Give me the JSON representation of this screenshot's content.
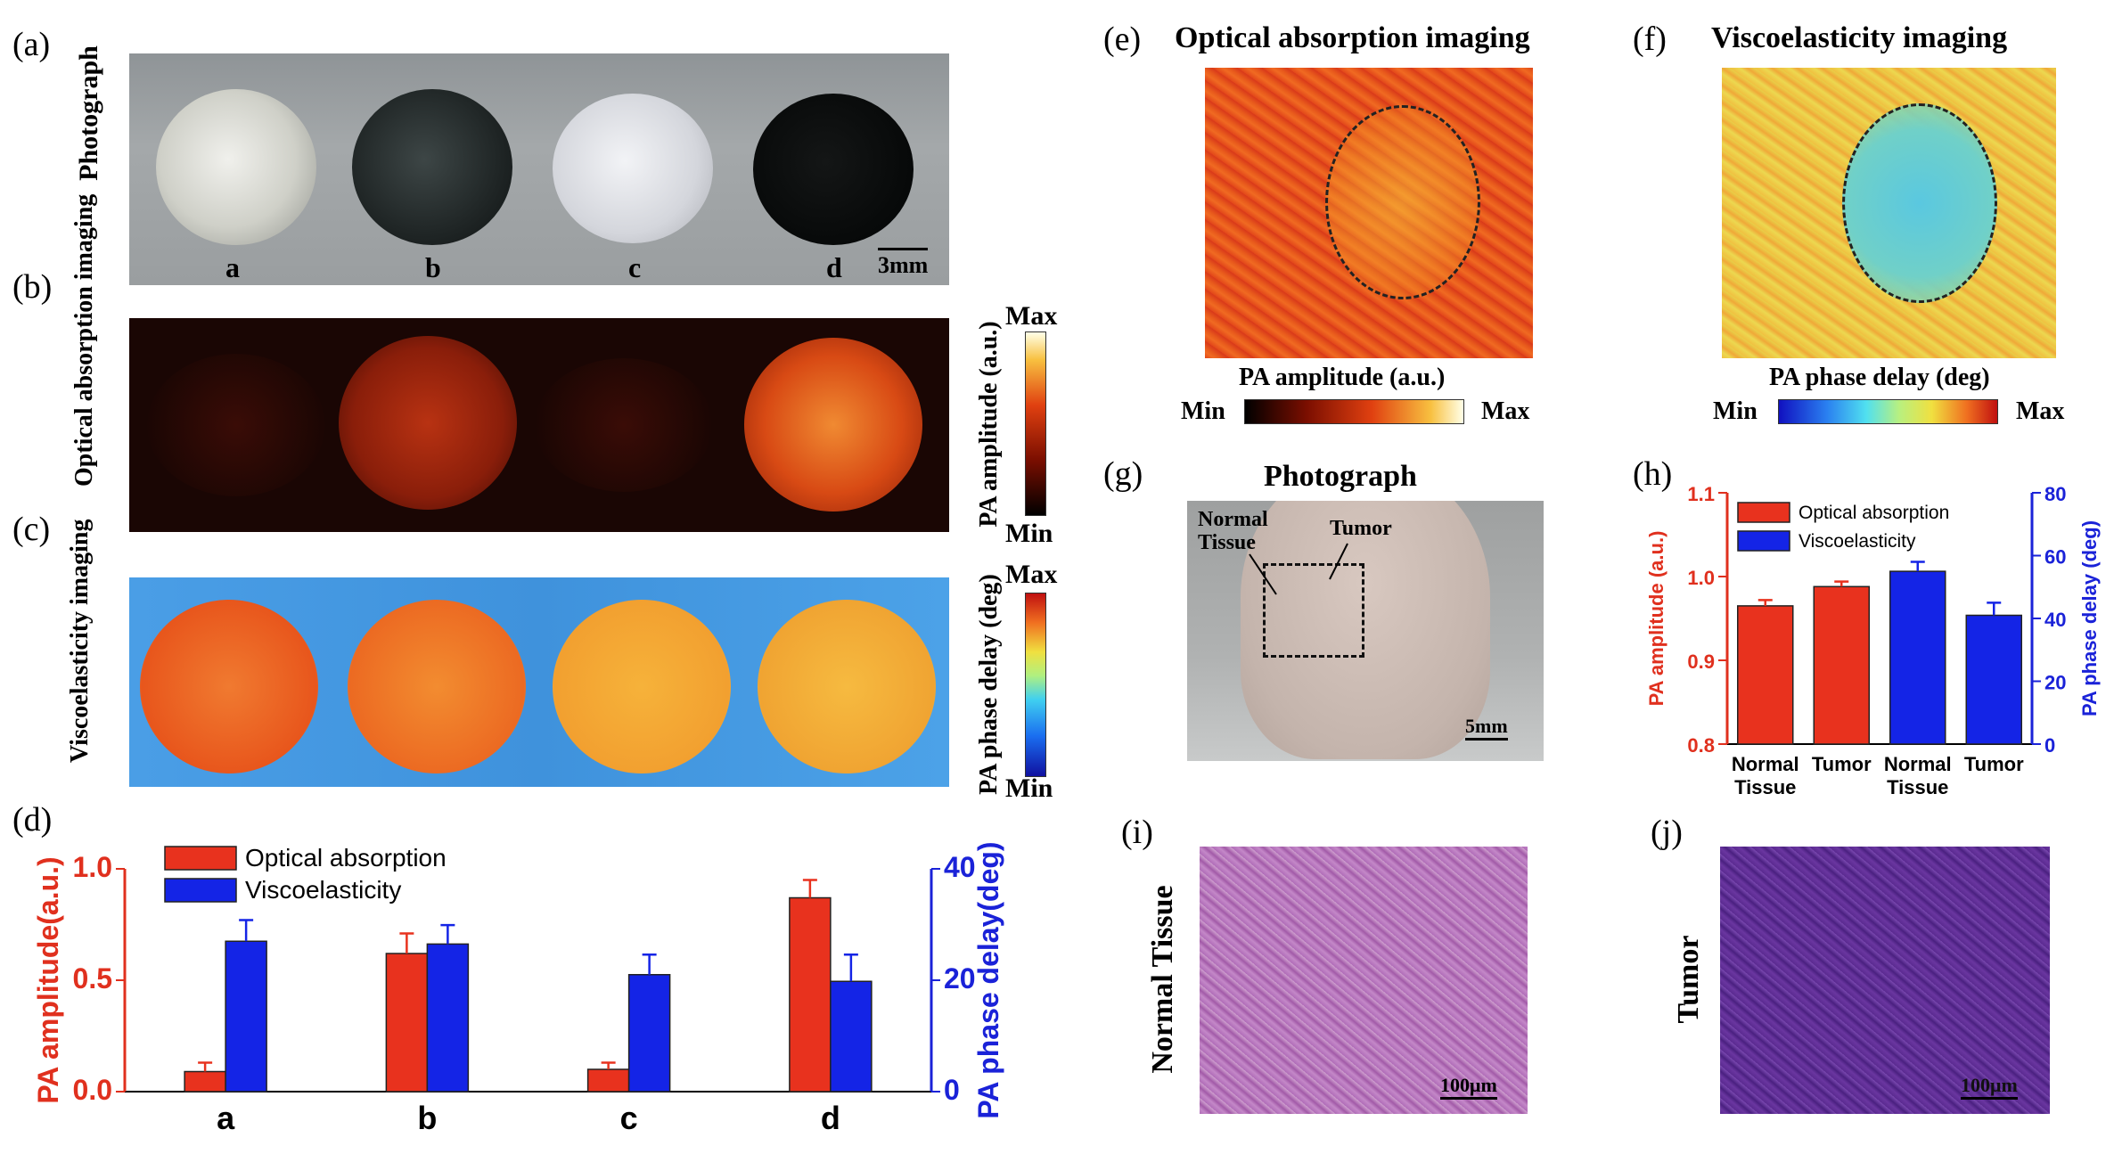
{
  "panels": {
    "a": {
      "label": "(a)",
      "row_title": "Photograph",
      "sample_labels": [
        "a",
        "b",
        "c",
        "d"
      ],
      "scale": "3mm"
    },
    "b": {
      "label": "(b)",
      "row_title": "Optical absorption imaging",
      "colorbar_title": "PA amplitude (a.u.)",
      "max": "Max",
      "min": "Min"
    },
    "c": {
      "label": "(c)",
      "row_title": "Viscoelasticity imaging",
      "colorbar_title": "PA phase delay (deg)",
      "max": "Max",
      "min": "Min"
    },
    "d": {
      "label": "(d)"
    },
    "e": {
      "label": "(e)",
      "title": "Optical absorption imaging",
      "colorbar_title": "PA amplitude (a.u.)",
      "min": "Min",
      "max": "Max"
    },
    "f": {
      "label": "(f)",
      "title": "Viscoelasticity imaging",
      "colorbar_title": "PA phase delay (deg)",
      "min": "Min",
      "max": "Max"
    },
    "g": {
      "label": "(g)",
      "title": "Photograph",
      "normal_label": "Normal Tissue",
      "tumor_label": "Tumor",
      "scale": "5mm"
    },
    "h": {
      "label": "(h)"
    },
    "i": {
      "label": "(i)",
      "side_label": "Normal Tissue",
      "scale": "100μm"
    },
    "j": {
      "label": "(j)",
      "side_label": "Tumor",
      "scale": "100μm"
    }
  },
  "colors": {
    "optical": "#e8321e",
    "visco": "#1424e6",
    "red_axis": "#e0301e",
    "blue_axis": "#1a22d8"
  },
  "chart_data": [
    {
      "id": "d",
      "type": "bar",
      "categories": [
        "a",
        "b",
        "c",
        "d"
      ],
      "legend": [
        "Optical absorption",
        "Viscoelasticity"
      ],
      "ylabel_left": "PA amplitude(a.u.)",
      "ylabel_right": "PA phase delay(deg)",
      "ylim_left": [
        0,
        1.0
      ],
      "ylim_right": [
        0,
        40
      ],
      "yticks_left": [
        "0.0",
        "0.5",
        "1.0"
      ],
      "yticks_right": [
        "0",
        "20",
        "40"
      ],
      "series": [
        {
          "name": "Optical absorption",
          "axis": "left",
          "values": [
            0.09,
            0.62,
            0.1,
            0.87
          ],
          "errors": [
            0.04,
            0.09,
            0.03,
            0.08
          ]
        },
        {
          "name": "Viscoelasticity",
          "axis": "right",
          "values": [
            27,
            26.5,
            21,
            19.8
          ],
          "errors": [
            3.8,
            3.4,
            3.6,
            4.8
          ]
        }
      ]
    },
    {
      "id": "h",
      "type": "bar",
      "categories": [
        "Normal Tissue",
        "Tumor",
        "Normal Tissue",
        "Tumor"
      ],
      "legend": [
        "Optical absorption",
        "Viscoelasticity"
      ],
      "ylabel_left": "PA amplitude (a.u.)",
      "ylabel_right": "PA phase delay (deg)",
      "ylim_left": [
        0.8,
        1.1
      ],
      "ylim_right": [
        0,
        80
      ],
      "yticks_left": [
        "0.8",
        "0.9",
        "1.0",
        "1.1"
      ],
      "yticks_right": [
        "0",
        "20",
        "40",
        "60",
        "80"
      ],
      "series": [
        {
          "name": "Optical absorption",
          "axis": "left",
          "values": [
            0.965,
            0.988,
            null,
            null
          ],
          "errors": [
            0.007,
            0.006,
            null,
            null
          ]
        },
        {
          "name": "Viscoelasticity",
          "axis": "right",
          "values": [
            null,
            null,
            55,
            41
          ],
          "errors": [
            null,
            null,
            3,
            4
          ]
        }
      ]
    }
  ]
}
